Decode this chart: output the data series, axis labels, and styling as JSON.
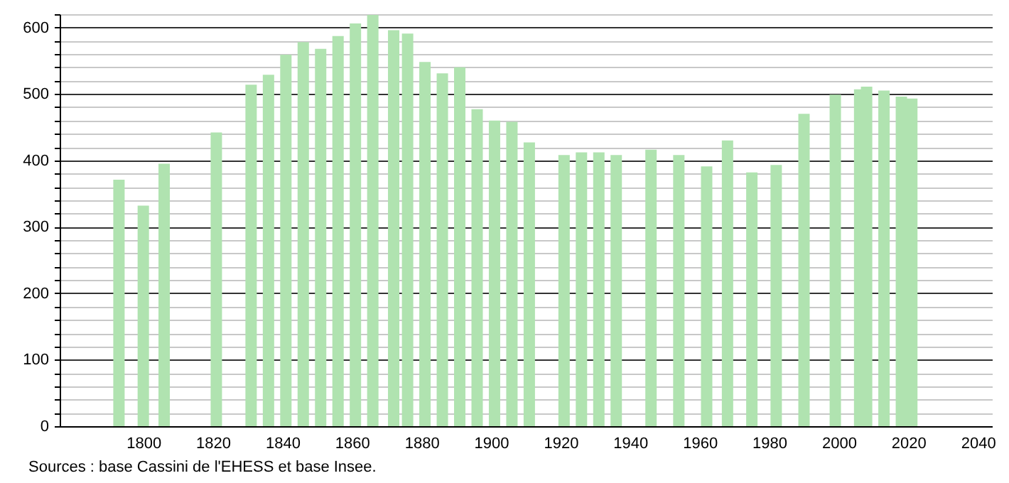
{
  "chart_data": {
    "type": "bar",
    "x": [
      1793,
      1800,
      1806,
      1821,
      1831,
      1836,
      1841,
      1846,
      1851,
      1856,
      1861,
      1866,
      1872,
      1876,
      1881,
      1886,
      1891,
      1896,
      1901,
      1906,
      1911,
      1921,
      1926,
      1931,
      1936,
      1946,
      1954,
      1962,
      1968,
      1975,
      1982,
      1990,
      1999,
      2006,
      2008,
      2013,
      2018,
      2021
    ],
    "values": [
      371,
      332,
      395,
      442,
      514,
      529,
      559,
      578,
      568,
      587,
      606,
      619,
      596,
      591,
      548,
      531,
      540,
      477,
      460,
      458,
      427,
      408,
      412,
      412,
      408,
      416,
      408,
      391,
      430,
      382,
      393,
      470,
      499,
      507,
      511,
      505,
      496,
      493
    ],
    "color": "#b0e3b0",
    "xlim": [
      1778,
      2042
    ],
    "xticks": [
      1800,
      1820,
      1840,
      1860,
      1880,
      1900,
      1920,
      1940,
      1960,
      1980,
      2000,
      2020,
      2040
    ],
    "ylim": [
      0,
      620
    ],
    "yticks": [
      0,
      {
        "value": 20,
        "label": null
      },
      {
        "value": 40,
        "label": null
      },
      {
        "value": 60,
        "label": null
      },
      {
        "value": 80,
        "label": null
      },
      100,
      {
        "value": 120,
        "label": null
      },
      {
        "value": 140,
        "label": null
      },
      {
        "value": 160,
        "label": null
      },
      {
        "value": 180,
        "label": null
      },
      200,
      {
        "value": 220,
        "label": null
      },
      {
        "value": 240,
        "label": null
      },
      {
        "value": 260,
        "label": null
      },
      {
        "value": 280,
        "label": null
      },
      300,
      {
        "value": 320,
        "label": null
      },
      {
        "value": 340,
        "label": null
      },
      {
        "value": 360,
        "label": null
      },
      {
        "value": 380,
        "label": null
      },
      400,
      {
        "value": 420,
        "label": null
      },
      {
        "value": 440,
        "label": null
      },
      {
        "value": 460,
        "label": null
      },
      {
        "value": 480,
        "label": null
      },
      500,
      {
        "value": 520,
        "label": null
      },
      {
        "value": 540,
        "label": null
      },
      {
        "value": 560,
        "label": null
      },
      {
        "value": 580,
        "label": null
      },
      600,
      {
        "value": 620,
        "label": null
      }
    ],
    "grid": "y",
    "annotations": [
      "Sources : base Cassini de l'EHESS et base Insee."
    ]
  }
}
